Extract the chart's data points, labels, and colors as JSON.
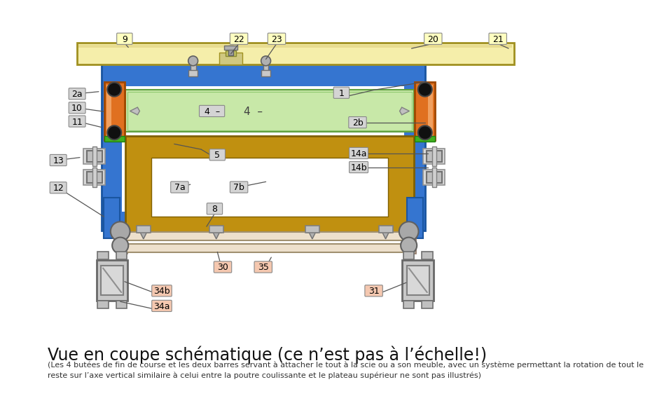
{
  "bg_color": "#ffffff",
  "title_main": "Vue en coupe schématique (ce n’est pas à l’échelle!)",
  "title_sub": "(Les 4 butées de fin de course et les deux barres servant à attacher le tout à la scie ou a son meuble, avec un système permettant la rotation de tout le\nreste sur l’axe vertical similaire à celui entre la poutre coulissante et le plateau supérieur ne sont pas illustrés)",
  "label_yellow": "#ffffc0",
  "label_gray": "#d4d4d4",
  "label_pink": "#f5c8b0",
  "color_wood": "#f5eeaa",
  "color_blue": "#3575d0",
  "color_blue_dark": "#1a55a0",
  "color_gold": "#c09010",
  "color_gold_dark": "#806000",
  "color_orange": "#e07020",
  "color_orange_dark": "#a04800",
  "color_green": "#c8e8a8",
  "color_green_dark": "#60a040",
  "color_gray": "#a0a0a0",
  "color_gray_light": "#d0d0d0",
  "color_gray_mid": "#b0b0b0",
  "color_black": "#101010",
  "color_green_accent": "#40b020"
}
